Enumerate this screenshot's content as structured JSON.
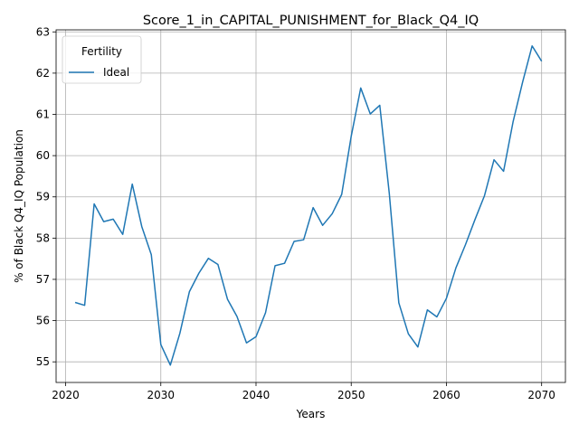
{
  "chart_data": {
    "type": "line",
    "title": "Score_1_in_CAPITAL_PUNISHMENT_for_Black_Q4_IQ",
    "xlabel": "Years",
    "ylabel": "% of Black Q4_IQ Population",
    "xlim": [
      2019,
      2072.5
    ],
    "ylim": [
      54.5,
      63.05
    ],
    "xticks": [
      2020,
      2030,
      2040,
      2050,
      2060,
      2070
    ],
    "yticks": [
      55,
      56,
      57,
      58,
      59,
      60,
      61,
      62,
      63
    ],
    "grid": true,
    "legend": {
      "title": "Fertility",
      "placement": "top-left"
    },
    "series": [
      {
        "name": "Ideal",
        "color": "#1f77b4",
        "x": [
          2021,
          2022,
          2023,
          2024,
          2025,
          2026,
          2027,
          2028,
          2029,
          2030,
          2031,
          2032,
          2033,
          2034,
          2035,
          2036,
          2037,
          2038,
          2039,
          2040,
          2041,
          2042,
          2043,
          2044,
          2045,
          2046,
          2047,
          2048,
          2049,
          2050,
          2051,
          2052,
          2053,
          2054,
          2055,
          2056,
          2057,
          2058,
          2059,
          2060,
          2061,
          2062,
          2063,
          2064,
          2065,
          2066,
          2067,
          2068,
          2069,
          2070
        ],
        "y": [
          56.44,
          56.37,
          58.83,
          58.4,
          58.46,
          58.09,
          59.31,
          58.28,
          57.6,
          55.42,
          54.92,
          55.69,
          56.7,
          57.15,
          57.51,
          57.36,
          56.52,
          56.1,
          55.46,
          55.61,
          56.19,
          57.33,
          57.39,
          57.92,
          57.96,
          58.74,
          58.31,
          58.59,
          59.06,
          60.47,
          61.64,
          61.01,
          61.22,
          59.08,
          56.43,
          55.68,
          55.36,
          56.26,
          56.09,
          56.54,
          57.28,
          57.84,
          58.45,
          59.03,
          59.9,
          59.62,
          60.82,
          61.78,
          62.66,
          62.29
        ]
      }
    ]
  }
}
